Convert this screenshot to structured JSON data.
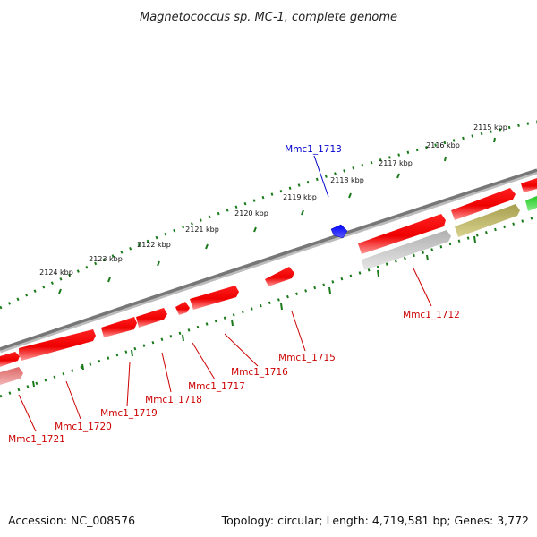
{
  "title": "Magnetococcus sp. MC-1, complete genome",
  "footer": {
    "accession": "Accession: NC_008576",
    "summary": "Topology: circular; Length: 4,719,581 bp; Genes: 3,772"
  },
  "colors": {
    "forward_gene": "#ff0000",
    "reverse_gene": "#0000ff",
    "gray_gene": "#bbbbbb",
    "olive_gene": "#b5ae5c",
    "green_gene": "#22cc22",
    "pink_gene": "#e88888",
    "backbone": "#777777",
    "ticks": "#1a7a1a",
    "label_red": "#cc0000",
    "label_blue": "#0000cc"
  },
  "ruler": {
    "ticks": [
      "2115 kbp",
      "2116 kbp",
      "2117 kbp",
      "2118 kbp",
      "2119 kbp",
      "2120 kbp",
      "2121 kbp",
      "2122 kbp",
      "2123 kbp",
      "2124 kbp"
    ]
  },
  "labels": {
    "mmc1_1712": "Mmc1_1712",
    "mmc1_1713": "Mmc1_1713",
    "mmc1_1715": "Mmc1_1715",
    "mmc1_1716": "Mmc1_1716",
    "mmc1_1717": "Mmc1_1717",
    "mmc1_1718": "Mmc1_1718",
    "mmc1_1719": "Mmc1_1719",
    "mmc1_1720": "Mmc1_1720",
    "mmc1_1721": "Mmc1_1721"
  }
}
